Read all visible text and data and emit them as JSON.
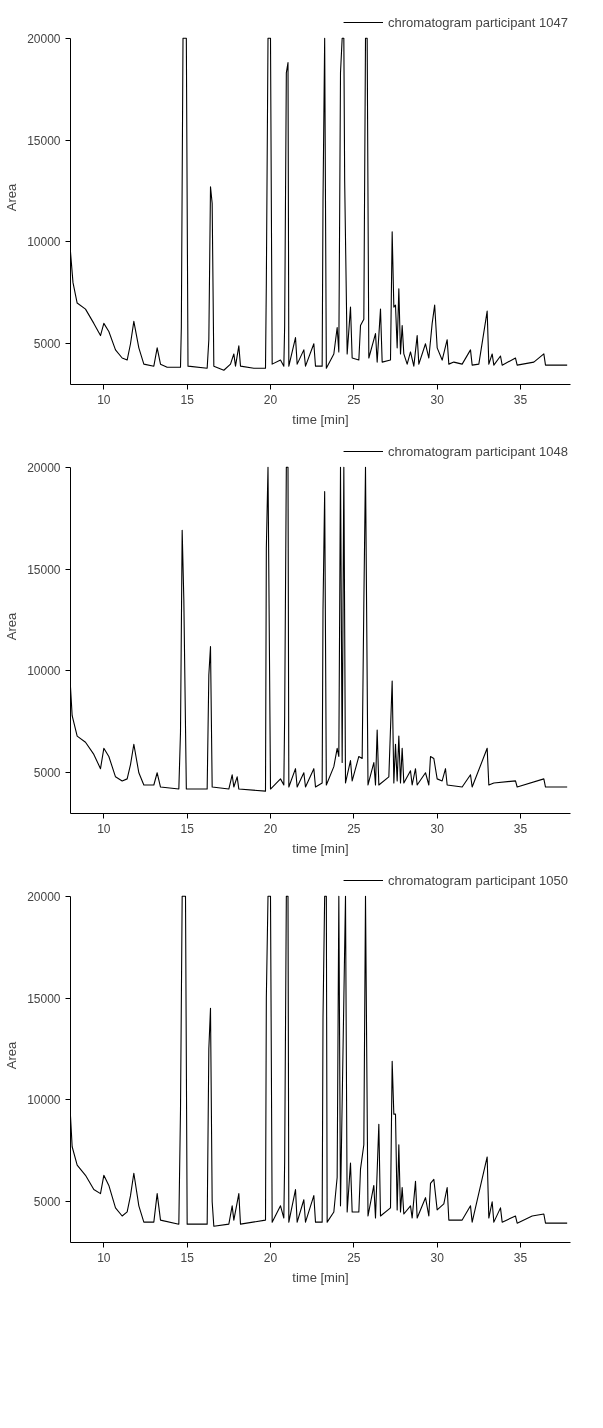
{
  "chart_data": [
    {
      "type": "line",
      "xlabel": "time [min]",
      "ylabel": "Area",
      "xlim": [
        8,
        38
      ],
      "ylim": [
        3000,
        20000
      ],
      "xticks": [
        10,
        15,
        20,
        25,
        30,
        35
      ],
      "yticks": [
        5000,
        10000,
        15000,
        20000
      ],
      "grid": false,
      "legend": "top right",
      "x": [
        8.0,
        8.15,
        8.4,
        8.9,
        9.4,
        9.8,
        10.0,
        10.3,
        10.7,
        11.1,
        11.4,
        11.6,
        11.8,
        12.1,
        12.4,
        13.0,
        13.2,
        13.4,
        13.8,
        14.6,
        14.65,
        14.75,
        14.95,
        15.05,
        16.2,
        16.3,
        16.4,
        16.5,
        16.6,
        17.2,
        17.6,
        17.8,
        17.9,
        18.1,
        18.2,
        19.0,
        19.7,
        19.75,
        19.85,
        20.0,
        20.1,
        20.6,
        20.8,
        20.85,
        20.95,
        21.05,
        21.1,
        21.5,
        21.6,
        22.0,
        22.1,
        22.6,
        22.7,
        23.1,
        23.15,
        23.25,
        23.35,
        23.8,
        24.0,
        24.1,
        24.2,
        24.3,
        24.4,
        24.45,
        24.6,
        24.8,
        24.9,
        25.3,
        25.4,
        25.6,
        25.7,
        25.8,
        25.9,
        26.3,
        26.4,
        26.6,
        26.7,
        27.2,
        27.3,
        27.4,
        27.5,
        27.6,
        27.7,
        27.8,
        27.9,
        28.0,
        28.2,
        28.4,
        28.6,
        28.8,
        28.9,
        29.3,
        29.5,
        29.7,
        29.85,
        30.0,
        30.3,
        30.6,
        30.7,
        31.0,
        31.5,
        32.0,
        32.1,
        32.5,
        33.0,
        33.1,
        33.3,
        33.4,
        33.8,
        33.9,
        34.7,
        34.8,
        35.8,
        36.4,
        36.5,
        37.0,
        37.8
      ],
      "series": [
        {
          "name": "chromatogram participant 1047",
          "color": "#000000",
          "values": [
            9500,
            8000,
            7000,
            6700,
            6000,
            5400,
            6000,
            5600,
            4700,
            4300,
            4200,
            5000,
            6100,
            4800,
            4000,
            3900,
            4800,
            4000,
            3850,
            3850,
            5800,
            20000,
            20000,
            3900,
            3800,
            5200,
            12700,
            11900,
            3900,
            3700,
            4000,
            4500,
            3900,
            4900,
            3900,
            3800,
            3800,
            8000,
            20000,
            20000,
            4000,
            4200,
            3900,
            5900,
            18300,
            18800,
            3900,
            5300,
            4000,
            4700,
            3900,
            5000,
            3900,
            3900,
            12000,
            20000,
            3800,
            4500,
            5800,
            4600,
            18300,
            20000,
            20000,
            13000,
            4500,
            6800,
            4300,
            4200,
            5900,
            6200,
            20000,
            20000,
            4300,
            5500,
            4100,
            6700,
            4100,
            4200,
            10500,
            6800,
            6900,
            4800,
            7700,
            4500,
            5900,
            4500,
            4000,
            4600,
            3900,
            5400,
            4000,
            5000,
            4300,
            6000,
            6900,
            4800,
            4200,
            5200,
            4000,
            4100,
            4000,
            4700,
            3950,
            4000,
            6600,
            4000,
            4500,
            3950,
            4400,
            3950,
            4300,
            3950,
            4100,
            4500,
            3950,
            3950,
            3950
          ]
        }
      ]
    },
    {
      "type": "line",
      "xlabel": "time [min]",
      "ylabel": "Area",
      "xlim": [
        8,
        38
      ],
      "ylim": [
        3000,
        20000
      ],
      "xticks": [
        10,
        15,
        20,
        25,
        30,
        35
      ],
      "yticks": [
        5000,
        10000,
        15000,
        20000
      ],
      "grid": false,
      "legend": "top right",
      "x": [
        8.0,
        8.1,
        8.4,
        8.9,
        9.4,
        9.8,
        10.0,
        10.3,
        10.7,
        11.1,
        11.4,
        11.6,
        11.8,
        12.1,
        12.4,
        13.0,
        13.2,
        13.4,
        14.5,
        14.6,
        14.7,
        14.8,
        14.95,
        16.2,
        16.3,
        16.4,
        16.5,
        17.5,
        17.7,
        17.8,
        18.0,
        18.1,
        19.7,
        19.75,
        19.85,
        20.0,
        20.6,
        20.8,
        20.85,
        20.95,
        21.05,
        21.1,
        21.5,
        21.6,
        22.0,
        22.1,
        22.6,
        22.7,
        23.1,
        23.15,
        23.25,
        23.35,
        23.8,
        24.0,
        24.1,
        24.2,
        24.3,
        24.4,
        24.5,
        24.8,
        24.9,
        25.3,
        25.5,
        25.6,
        25.7,
        25.85,
        26.2,
        26.3,
        26.4,
        26.5,
        27.1,
        27.3,
        27.4,
        27.5,
        27.6,
        27.7,
        27.8,
        27.9,
        28.0,
        28.4,
        28.5,
        28.7,
        28.8,
        29.3,
        29.5,
        29.6,
        29.8,
        30.0,
        30.3,
        30.5,
        30.6,
        31.5,
        32.0,
        32.1,
        33.0,
        33.1,
        33.4,
        34.7,
        34.8,
        36.4,
        36.5,
        37.8
      ],
      "series": [
        {
          "name": "chromatogram participant 1048",
          "color": "#000000",
          "values": [
            9200,
            7800,
            6800,
            6500,
            5900,
            5200,
            6200,
            5800,
            4800,
            4600,
            4700,
            5400,
            6400,
            5000,
            4400,
            4400,
            5000,
            4300,
            4200,
            7000,
            16900,
            13500,
            4200,
            4200,
            9800,
            11200,
            4300,
            4200,
            4900,
            4300,
            4800,
            4200,
            4100,
            16000,
            20000,
            4200,
            4700,
            4400,
            7800,
            20000,
            20000,
            4300,
            5200,
            4300,
            5000,
            4300,
            5200,
            4300,
            4500,
            13000,
            18800,
            4400,
            5300,
            6200,
            5800,
            20000,
            5500,
            20000,
            4500,
            5600,
            4600,
            5800,
            5700,
            13300,
            20000,
            4400,
            5500,
            4400,
            7100,
            4400,
            4800,
            9500,
            4500,
            6400,
            4600,
            6800,
            4500,
            6200,
            4500,
            5100,
            4400,
            5200,
            4400,
            5000,
            4400,
            5800,
            5700,
            4700,
            4600,
            5200,
            4400,
            4300,
            4900,
            4300,
            6200,
            4400,
            4500,
            4600,
            4300,
            4700,
            4300,
            4300
          ]
        }
      ]
    },
    {
      "type": "line",
      "xlabel": "time [min]",
      "ylabel": "Area",
      "xlim": [
        8,
        38
      ],
      "ylim": [
        3000,
        20000
      ],
      "xticks": [
        10,
        15,
        20,
        25,
        30,
        35
      ],
      "yticks": [
        5000,
        10000,
        15000,
        20000
      ],
      "grid": false,
      "legend": "top right",
      "x": [
        8.0,
        8.1,
        8.4,
        8.9,
        9.4,
        9.8,
        10.0,
        10.3,
        10.7,
        11.1,
        11.4,
        11.6,
        11.8,
        12.1,
        12.4,
        13.0,
        13.2,
        13.4,
        14.5,
        14.6,
        14.7,
        14.9,
        15.0,
        16.2,
        16.3,
        16.4,
        16.5,
        16.6,
        17.5,
        17.7,
        17.8,
        18.1,
        18.2,
        19.7,
        19.75,
        19.85,
        20.0,
        20.1,
        20.6,
        20.8,
        20.85,
        20.95,
        21.05,
        21.1,
        21.5,
        21.6,
        22.0,
        22.1,
        22.6,
        22.7,
        23.1,
        23.15,
        23.25,
        23.35,
        23.4,
        23.8,
        24.0,
        24.1,
        24.2,
        24.5,
        24.6,
        24.8,
        24.9,
        25.3,
        25.4,
        25.6,
        25.7,
        25.85,
        26.2,
        26.3,
        26.5,
        26.6,
        27.2,
        27.3,
        27.4,
        27.5,
        27.6,
        27.7,
        27.8,
        27.9,
        28.0,
        28.4,
        28.5,
        28.7,
        28.8,
        29.3,
        29.5,
        29.6,
        29.8,
        30.0,
        30.4,
        30.6,
        30.7,
        31.5,
        32.0,
        32.1,
        33.0,
        33.1,
        33.3,
        33.4,
        33.8,
        33.9,
        34.7,
        34.8,
        35.7,
        36.4,
        36.5,
        37.8
      ],
      "series": [
        {
          "name": "chromatogram participant 1050",
          "color": "#000000",
          "values": [
            9200,
            7700,
            6800,
            6300,
            5600,
            5400,
            6300,
            5800,
            4700,
            4300,
            4500,
            5300,
            6400,
            4800,
            4000,
            4000,
            5400,
            4100,
            3900,
            9500,
            20000,
            20000,
            3900,
            3900,
            12500,
            14500,
            5000,
            3800,
            3900,
            4800,
            4100,
            5400,
            3900,
            4100,
            15000,
            20000,
            20000,
            4000,
            4800,
            4200,
            7000,
            20000,
            20000,
            4000,
            5600,
            4000,
            5100,
            4000,
            5300,
            4000,
            4000,
            14000,
            20000,
            20000,
            4000,
            4500,
            6200,
            20000,
            4800,
            20000,
            4500,
            6900,
            4500,
            4500,
            6600,
            7800,
            20000,
            4300,
            5800,
            4200,
            8800,
            4300,
            4700,
            11900,
            9300,
            9300,
            4600,
            7800,
            4500,
            5700,
            4400,
            4800,
            4200,
            6000,
            4200,
            5200,
            4300,
            5900,
            6100,
            4600,
            4900,
            5700,
            4100,
            4100,
            4800,
            4000,
            7200,
            4200,
            5000,
            4000,
            4700,
            4000,
            4300,
            3950,
            4300,
            4400,
            3950,
            3950
          ]
        }
      ]
    }
  ]
}
